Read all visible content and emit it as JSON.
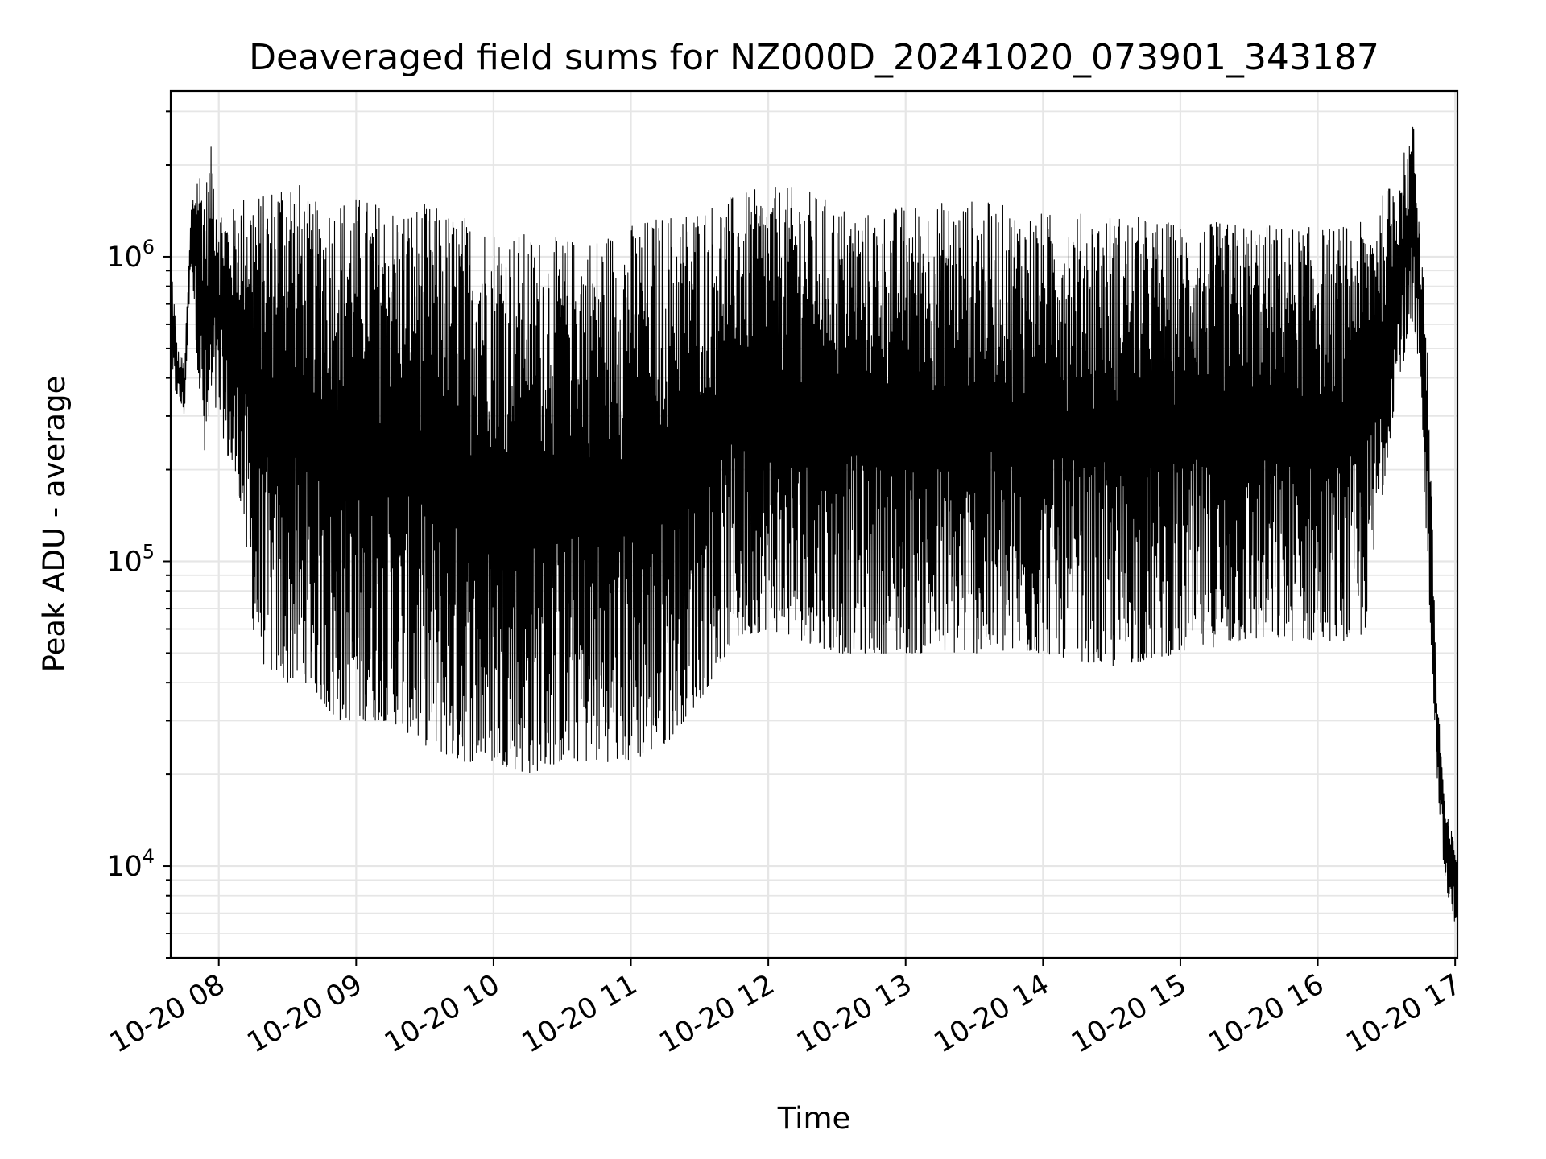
{
  "chart_data": {
    "type": "line",
    "title": "Deaveraged field sums for NZ000D_20241020_073901_343187",
    "xlabel": "Time",
    "ylabel": "Peak ADU - average",
    "yscale": "log",
    "ylim": [
      5000,
      3500000
    ],
    "xlim": [
      "2024-10-20 07:39",
      "2024-10-20 17:01"
    ],
    "x_ticks": [
      "10-20 08",
      "10-20 09",
      "10-20 10",
      "10-20 11",
      "10-20 12",
      "10-20 13",
      "10-20 14",
      "10-20 15",
      "10-20 16",
      "10-20 17"
    ],
    "y_ticks": [
      {
        "base": "10",
        "exp": "4",
        "value": 10000
      },
      {
        "base": "10",
        "exp": "5",
        "value": 100000
      },
      {
        "base": "10",
        "exp": "6",
        "value": 1000000
      }
    ],
    "grid": true,
    "line_color": "#000000",
    "grid_color": "#e6e6e6",
    "series": [
      {
        "x": [
          "07:39",
          "07:42",
          "07:45",
          "07:48",
          "07:51",
          "07:54",
          "07:57",
          "08:00",
          "08:05",
          "08:10",
          "08:15",
          "08:20",
          "08:30",
          "08:40",
          "08:50",
          "09:00",
          "09:15",
          "09:30",
          "09:45",
          "10:00",
          "10:15",
          "10:30",
          "10:45",
          "11:00",
          "11:15",
          "11:30",
          "11:45",
          "12:00",
          "12:15",
          "12:30",
          "12:45",
          "13:00",
          "13:30",
          "14:00",
          "14:30",
          "15:00",
          "15:30",
          "16:00",
          "16:20",
          "16:35",
          "16:42",
          "16:45",
          "16:48",
          "16:52",
          "16:56",
          "17:00",
          "17:01"
        ],
        "envelope_high": [
          1100000,
          500000,
          450000,
          1500000,
          2100000,
          1700000,
          2400000,
          1500000,
          1400000,
          1600000,
          1700000,
          1600000,
          2100000,
          1500000,
          1600000,
          1600000,
          1500000,
          1500000,
          1400000,
          1300000,
          1200000,
          1150000,
          1200000,
          1300000,
          1400000,
          1500000,
          1600000,
          1700000,
          1700000,
          1500000,
          1400000,
          1500000,
          1550000,
          1400000,
          1400000,
          1300000,
          1300000,
          1250000,
          1300000,
          1900000,
          2800000,
          1300000,
          500000,
          40000,
          15000,
          12000,
          12000
        ],
        "envelope_low": [
          350000,
          350000,
          300000,
          1000000,
          400000,
          200000,
          300000,
          300000,
          200000,
          150000,
          60000,
          45000,
          40000,
          40000,
          30000,
          30000,
          30000,
          25000,
          22000,
          22000,
          20000,
          22000,
          22000,
          22000,
          25000,
          35000,
          55000,
          60000,
          55000,
          50000,
          50000,
          50000,
          50000,
          50000,
          45000,
          50000,
          55000,
          55000,
          55000,
          400000,
          550000,
          300000,
          100000,
          20000,
          8000,
          6500,
          7000
        ]
      }
    ]
  }
}
